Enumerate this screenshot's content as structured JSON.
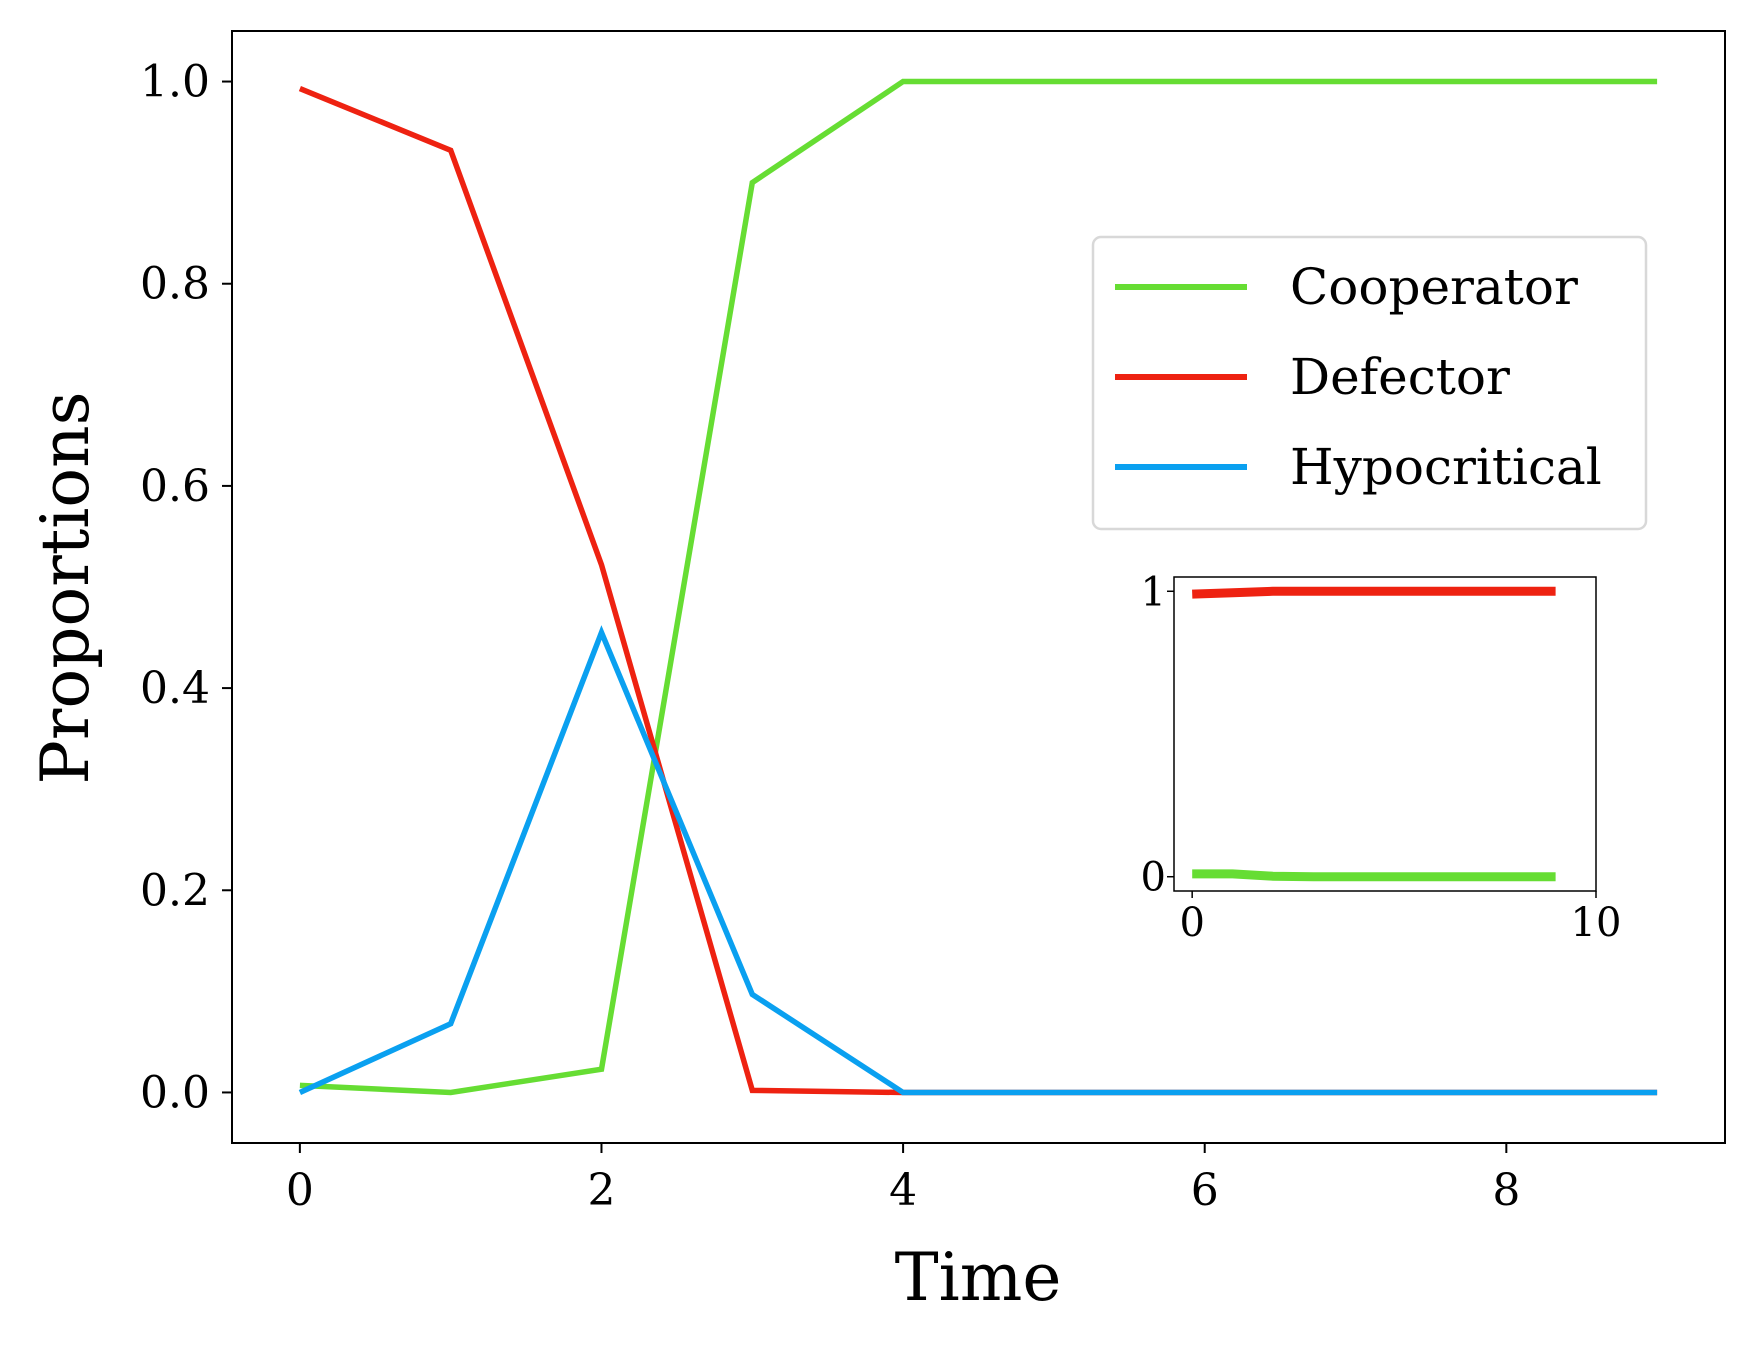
{
  "chart_data": [
    {
      "type": "line",
      "xlabel": "Time",
      "ylabel": "Proportions",
      "xlim": [
        -0.45,
        9.45
      ],
      "ylim": [
        -0.05,
        1.05
      ],
      "xticks": [
        0,
        2,
        4,
        6,
        8
      ],
      "yticks": [
        0.0,
        0.2,
        0.4,
        0.6,
        0.8,
        1.0
      ],
      "xtick_labels": [
        "0",
        "2",
        "4",
        "6",
        "8"
      ],
      "ytick_labels": [
        "0.0",
        "0.2",
        "0.4",
        "0.6",
        "0.8",
        "1.0"
      ],
      "grid": false,
      "legend": "upper-right",
      "x": [
        0,
        1,
        2,
        3,
        4,
        5,
        6,
        7,
        8,
        9
      ],
      "series": [
        {
          "name": "Cooperator",
          "color": "#66dd33",
          "values": [
            0.007,
            0.0,
            0.023,
            0.9,
            1.0,
            1.0,
            1.0,
            1.0,
            1.0,
            1.0
          ]
        },
        {
          "name": "Defector",
          "color": "#ee2211",
          "values": [
            0.993,
            0.932,
            0.522,
            0.002,
            0.0,
            0.0,
            0.0,
            0.0,
            0.0,
            0.0
          ]
        },
        {
          "name": "Hypocritical",
          "color": "#0aa0f0",
          "values": [
            0.0,
            0.068,
            0.455,
            0.097,
            0.0,
            0.0,
            0.0,
            0.0,
            0.0,
            0.0
          ]
        }
      ]
    },
    {
      "type": "line",
      "inset": true,
      "xlim": [
        -0.45,
        10.0
      ],
      "ylim": [
        -0.05,
        1.05
      ],
      "xticks": [
        0,
        10
      ],
      "yticks": [
        0,
        1
      ],
      "xtick_labels": [
        "0",
        "10"
      ],
      "ytick_labels": [
        "0",
        "1"
      ],
      "x": [
        0,
        1,
        2,
        3,
        4,
        5,
        6,
        7,
        8,
        9
      ],
      "series": [
        {
          "color": "#ee2211",
          "values": [
            0.99,
            0.995,
            1.0,
            1.0,
            1.0,
            1.0,
            1.0,
            1.0,
            1.0,
            1.0
          ]
        },
        {
          "color": "#66dd33",
          "values": [
            0.01,
            0.01,
            0.002,
            0.0,
            0.0,
            0.0,
            0.0,
            0.0,
            0.0,
            0.0
          ]
        }
      ]
    }
  ]
}
